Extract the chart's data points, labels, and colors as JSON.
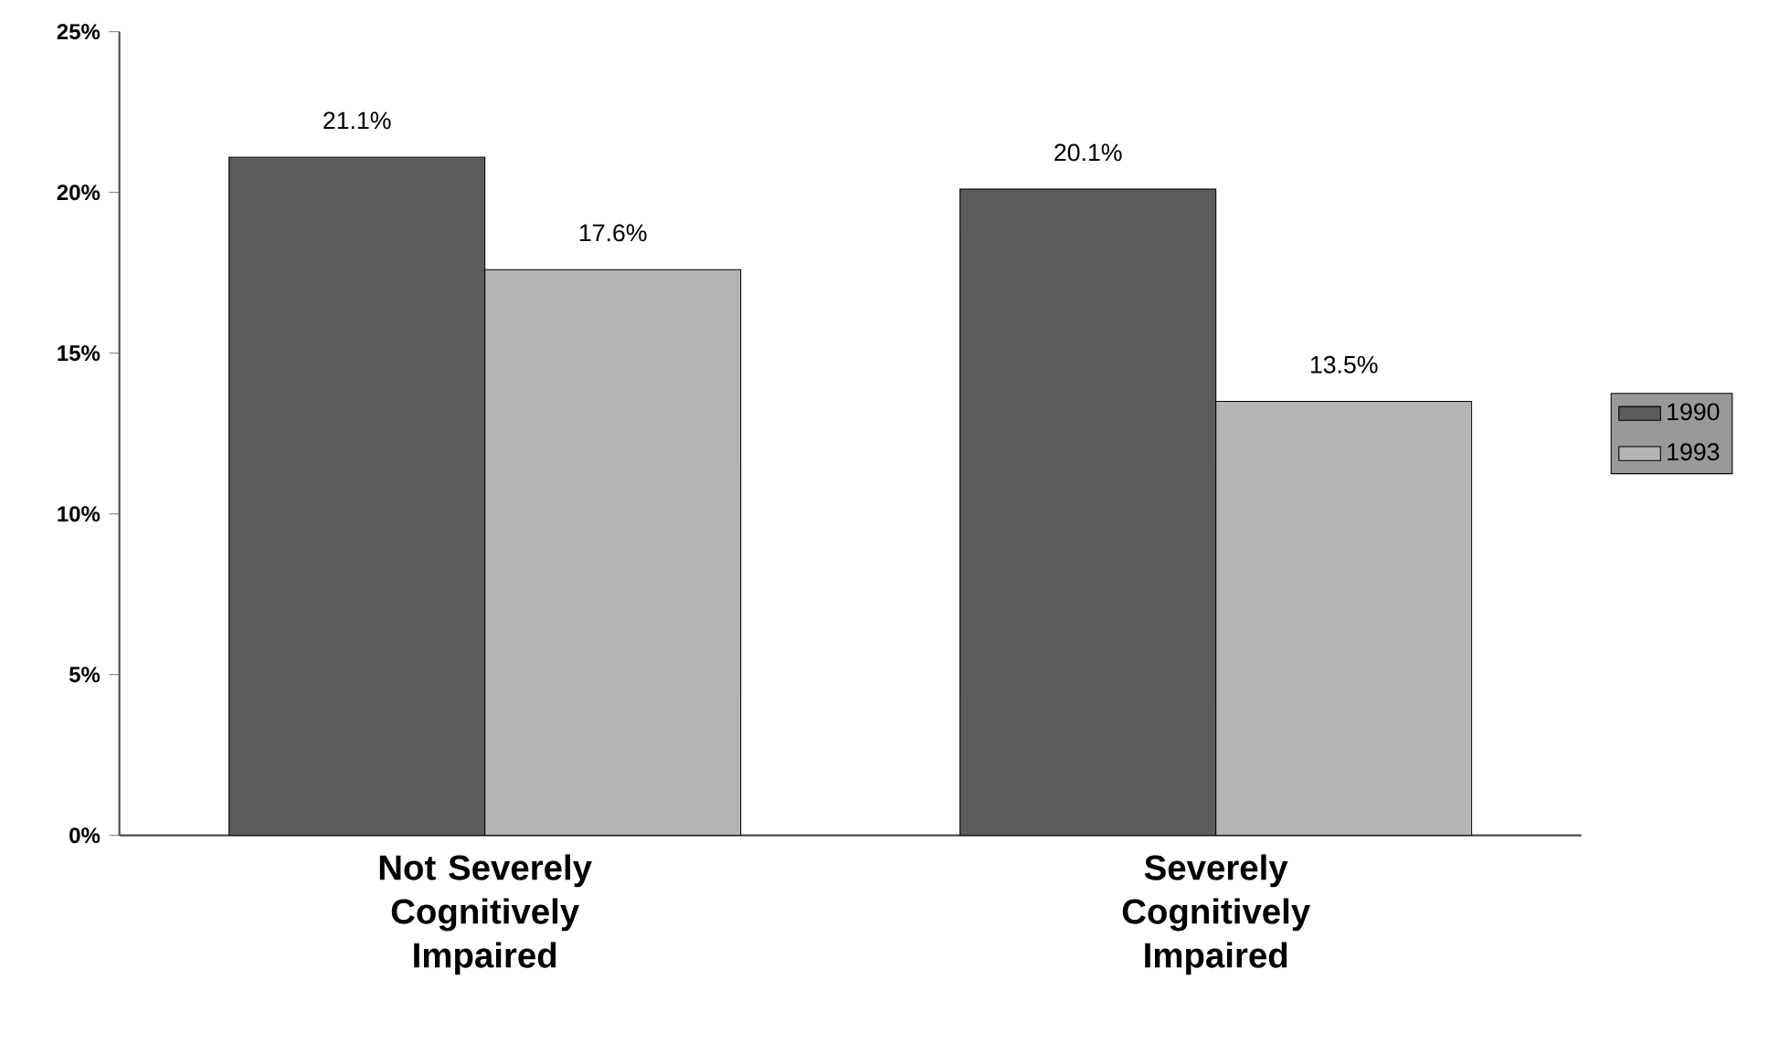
{
  "chart_data": {
    "type": "bar",
    "categories": [
      "Not Severely Cognitively Impaired",
      "Severely Cognitively Impaired"
    ],
    "series": [
      {
        "name": "1990",
        "color": "#5c5c5c",
        "values": [
          21.1,
          20.1
        ],
        "value_labels": [
          "21.1%",
          "20.1%"
        ]
      },
      {
        "name": "1993",
        "color": "#b4b4b4",
        "values": [
          17.6,
          13.5
        ],
        "value_labels": [
          "17.6%",
          "13.5%"
        ]
      }
    ],
    "ylim": [
      0,
      25
    ],
    "yticks": [
      {
        "value": 0,
        "label": "0%"
      },
      {
        "value": 5,
        "label": "5%"
      },
      {
        "value": 10,
        "label": "10%"
      },
      {
        "value": 15,
        "label": "15%"
      },
      {
        "value": 20,
        "label": "20%"
      },
      {
        "value": 25,
        "label": "25%"
      }
    ],
    "grid": false,
    "legend": "right"
  }
}
